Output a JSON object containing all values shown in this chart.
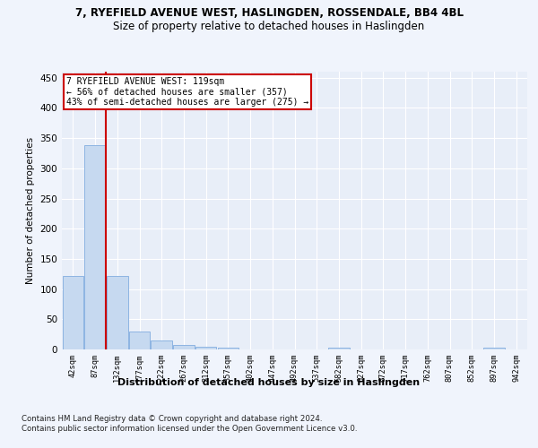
{
  "title1": "7, RYEFIELD AVENUE WEST, HASLINGDEN, ROSSENDALE, BB4 4BL",
  "title2": "Size of property relative to detached houses in Haslingden",
  "xlabel": "Distribution of detached houses by size in Haslingden",
  "ylabel": "Number of detached properties",
  "bar_labels": [
    "42sqm",
    "87sqm",
    "132sqm",
    "177sqm",
    "222sqm",
    "267sqm",
    "312sqm",
    "357sqm",
    "402sqm",
    "447sqm",
    "492sqm",
    "537sqm",
    "582sqm",
    "627sqm",
    "672sqm",
    "717sqm",
    "762sqm",
    "807sqm",
    "852sqm",
    "897sqm",
    "942sqm"
  ],
  "bar_values": [
    122,
    338,
    122,
    29,
    15,
    8,
    5,
    3,
    0,
    0,
    0,
    0,
    3,
    0,
    0,
    0,
    0,
    0,
    0,
    3,
    0
  ],
  "bar_color": "#c6d9f0",
  "bar_edge_color": "#8db4e2",
  "annotation_text_line1": "7 RYEFIELD AVENUE WEST: 119sqm",
  "annotation_text_line2": "← 56% of detached houses are smaller (357)",
  "annotation_text_line3": "43% of semi-detached houses are larger (275) →",
  "vline_color": "#cc0000",
  "vline_x": 1.5,
  "ylim": [
    0,
    460
  ],
  "yticks": [
    0,
    50,
    100,
    150,
    200,
    250,
    300,
    350,
    400,
    450
  ],
  "footer1": "Contains HM Land Registry data © Crown copyright and database right 2024.",
  "footer2": "Contains public sector information licensed under the Open Government Licence v3.0.",
  "bg_color": "#f0f4fc",
  "plot_bg_color": "#e8eef8",
  "grid_color": "#ffffff",
  "title1_fontsize": 8.5,
  "title2_fontsize": 8.5
}
